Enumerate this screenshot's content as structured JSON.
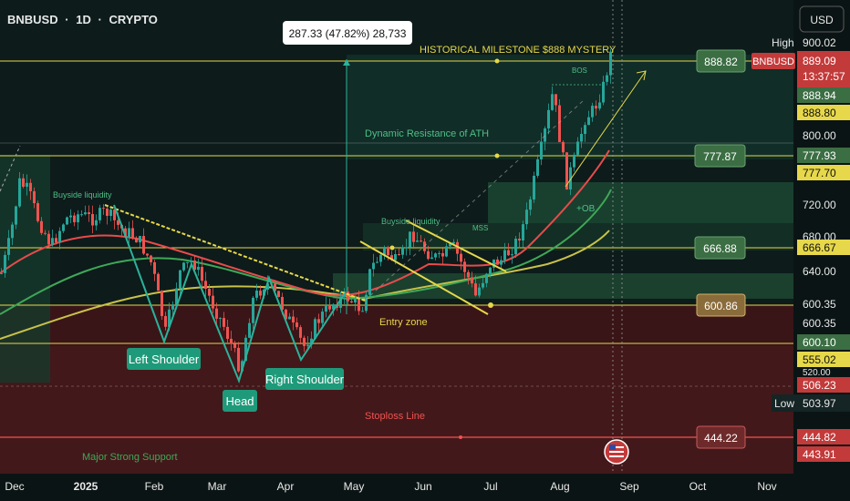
{
  "header": {
    "symbol": "BNBUSD",
    "sep1": "·",
    "interval": "1D",
    "sep2": "·",
    "market": "CRYPTO"
  },
  "currency_button": "USD",
  "measure_label": "287.33 (47.82%) 28,733",
  "colors": {
    "bullish_candle": "#26a69a",
    "bearish_candle": "#ef5350",
    "level_line": "#e6d84a",
    "pattern_line": "#2bb39a",
    "trend_line": "#e6d84a",
    "ema_fast": "#e84b4b",
    "ema_mid": "#3fa857",
    "ema_slow": "#c9c24a",
    "label_green": "#1e9a7a",
    "tag_level": "#3b6e43",
    "tag_red": "#c33a3a",
    "axis_text": "#e8e8e8"
  },
  "annotations": {
    "historical": "HISTORICAL MILESTONE $888 MYSTERY",
    "dynamic": "Dynamic Resistance of ATH",
    "buyside1": "Buyside liquidity",
    "buyside2": "Buyside liquidity",
    "mss": "MSS",
    "bos": "BOS",
    "ob": "+OB",
    "entry": "Entry zone",
    "stoploss": "Stoploss Line",
    "support": "Major Strong Support",
    "left_shoulder": "Left Shoulder",
    "head": "Head",
    "right_shoulder": "Right Shoulder"
  },
  "level_tags": {
    "l888": "888.82",
    "l777": "777.87",
    "l666": "666.88",
    "l600": "600.86",
    "l444": "444.22"
  },
  "price_axis": {
    "high_label": "High",
    "high_value": "900.02",
    "last_symbol": "BNBUSD",
    "last_price": "889.09",
    "countdown": "13:37:57",
    "p88894": "888.94",
    "p88880": "888.80",
    "t800": "800.00",
    "p77793": "777.93",
    "p77770": "777.70",
    "t720": "720.00",
    "t680": "680.00",
    "p66667": "666.67",
    "t640": "640.00",
    "p60035a": "600.35",
    "p60035b": "600.35",
    "p60010": "600.10",
    "p55502": "555.02",
    "t520": "520.00",
    "p50623": "506.23",
    "low_label": "Low",
    "low_value": "503.97",
    "p44482": "444.82",
    "p44391": "443.91"
  },
  "time_axis": [
    "Dec",
    "2025",
    "Feb",
    "Mar",
    "Apr",
    "May",
    "Jun",
    "Jul",
    "Aug",
    "Sep",
    "Oct",
    "Nov"
  ],
  "chart_data": {
    "type": "candlestick",
    "symbol": "BNBUSD",
    "interval": "1D",
    "x": [
      "Dec",
      "2025",
      "Feb",
      "Mar",
      "Apr",
      "May",
      "Jun",
      "Jul",
      "Aug",
      "Sep",
      "Oct",
      "Nov"
    ],
    "y_axis_ticks": [
      900.02,
      800.0,
      720.0,
      680.0,
      640.0,
      600.35,
      520.0,
      503.97,
      444.82
    ],
    "horizontal_levels": [
      888.82,
      777.87,
      666.88,
      600.86,
      444.22
    ],
    "session_high": 900.02,
    "session_low": 503.97,
    "last_price": 889.09,
    "closes_monthly": [
      {
        "period": "Dec",
        "value": 710
      },
      {
        "period": "2025",
        "value": 690
      },
      {
        "period": "Feb",
        "value": 620
      },
      {
        "period": "Mar",
        "value": 560
      },
      {
        "period": "Apr",
        "value": 590
      },
      {
        "period": "May",
        "value": 650
      },
      {
        "period": "Jun",
        "value": 645
      },
      {
        "period": "Jul",
        "value": 760
      },
      {
        "period": "Aug",
        "value": 860
      }
    ],
    "measure": {
      "change": 287.33,
      "percent": 47.82,
      "ticks": 28733
    },
    "legend": "none",
    "grid": false
  }
}
